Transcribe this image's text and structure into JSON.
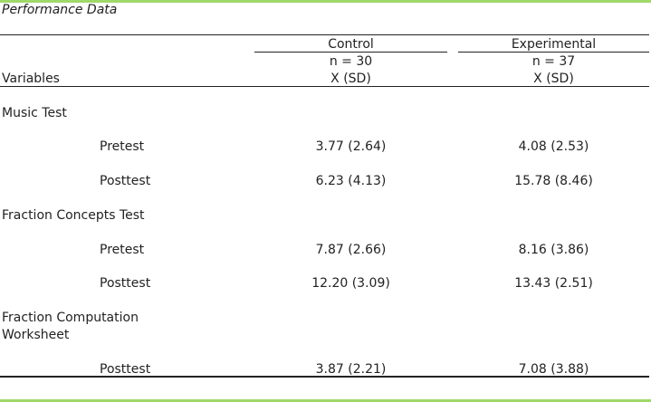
{
  "caption": "Performance Data",
  "header": {
    "variables_label": "Variables",
    "groups": [
      {
        "name": "Control",
        "n": "n = 30",
        "stat": "X (SD)"
      },
      {
        "name": "Experimental",
        "n": "n = 37",
        "stat": "X (SD)"
      }
    ]
  },
  "sections": [
    {
      "title": "Music Test",
      "rows": [
        {
          "label": "Pretest",
          "control": "3.77 (2.64)",
          "experimental": "4.08 (2.53)"
        },
        {
          "label": "Posttest",
          "control": "6.23 (4.13)",
          "experimental": "15.78 (8.46)"
        }
      ]
    },
    {
      "title": "Fraction Concepts Test",
      "rows": [
        {
          "label": "Pretest",
          "control": "7.87 (2.66)",
          "experimental": "8.16 (3.86)"
        },
        {
          "label": "Posttest",
          "control": "12.20 (3.09)",
          "experimental": "13.43 (2.51)"
        }
      ]
    },
    {
      "title_line1": "Fraction Computation",
      "title_line2": "Worksheet",
      "rows": [
        {
          "label": "Posttest",
          "control": "3.87 (2.21)",
          "experimental": "7.08 (3.88)"
        }
      ]
    }
  ]
}
